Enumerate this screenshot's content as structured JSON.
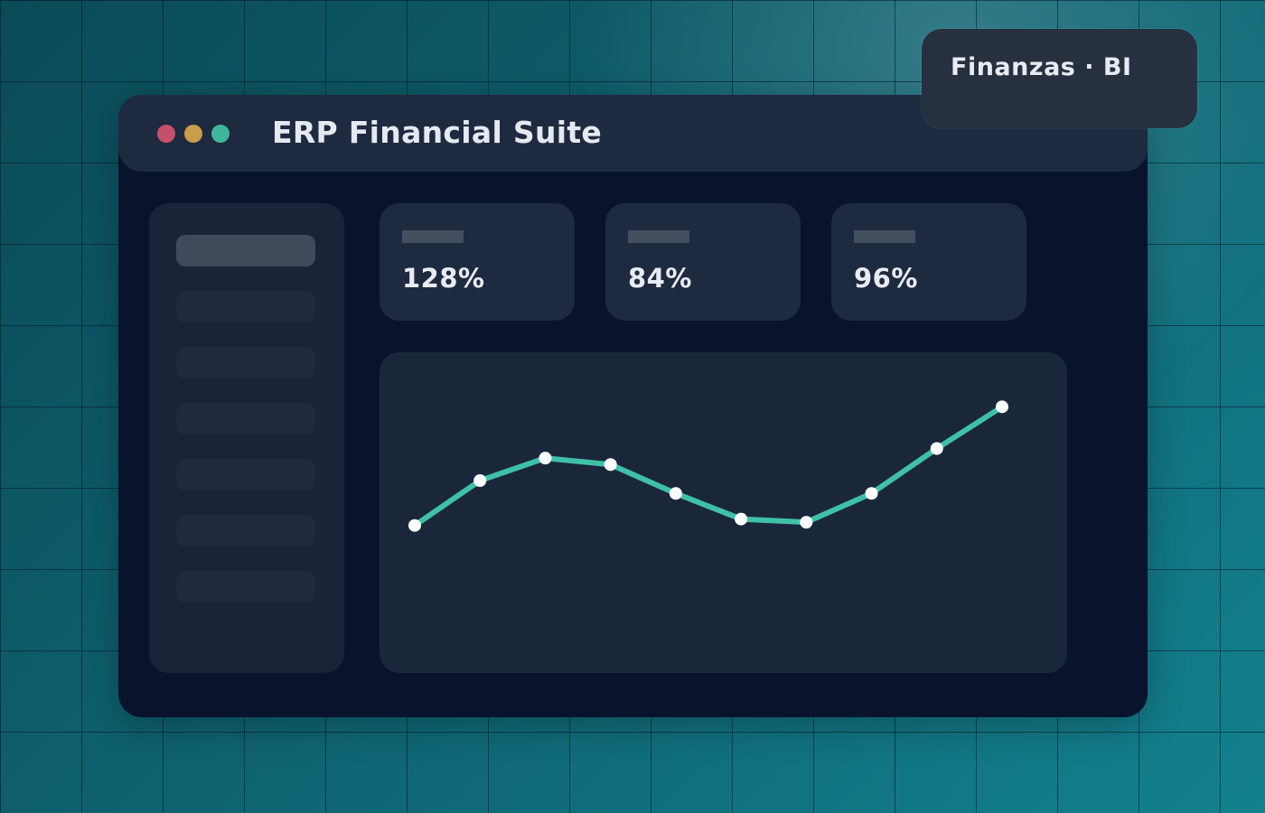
{
  "window": {
    "title": "ERP Financial Suite",
    "controls": {
      "close_color": "#c5506a",
      "minimize_color": "#c99d4a",
      "maximize_color": "#3fb69a"
    }
  },
  "badge": {
    "text": "Finanzas · BI"
  },
  "kpis": [
    {
      "value": "128%"
    },
    {
      "value": "84%"
    },
    {
      "value": "96%"
    }
  ],
  "colors": {
    "accent_line": "#3fc1a8",
    "point_fill": "#ffffff"
  },
  "sidebar": {
    "item_count": 7,
    "active_index": 0
  },
  "chart_data": {
    "type": "line",
    "title": "",
    "xlabel": "",
    "ylabel": "",
    "grid": false,
    "legend": "none",
    "ylim": [
      0,
      100
    ],
    "x": [
      1,
      2,
      3,
      4,
      5,
      6,
      7,
      8,
      9,
      10
    ],
    "series": [
      {
        "values": [
          46,
          60,
          67,
          65,
          56,
          48,
          47,
          56,
          70,
          83
        ]
      }
    ]
  }
}
